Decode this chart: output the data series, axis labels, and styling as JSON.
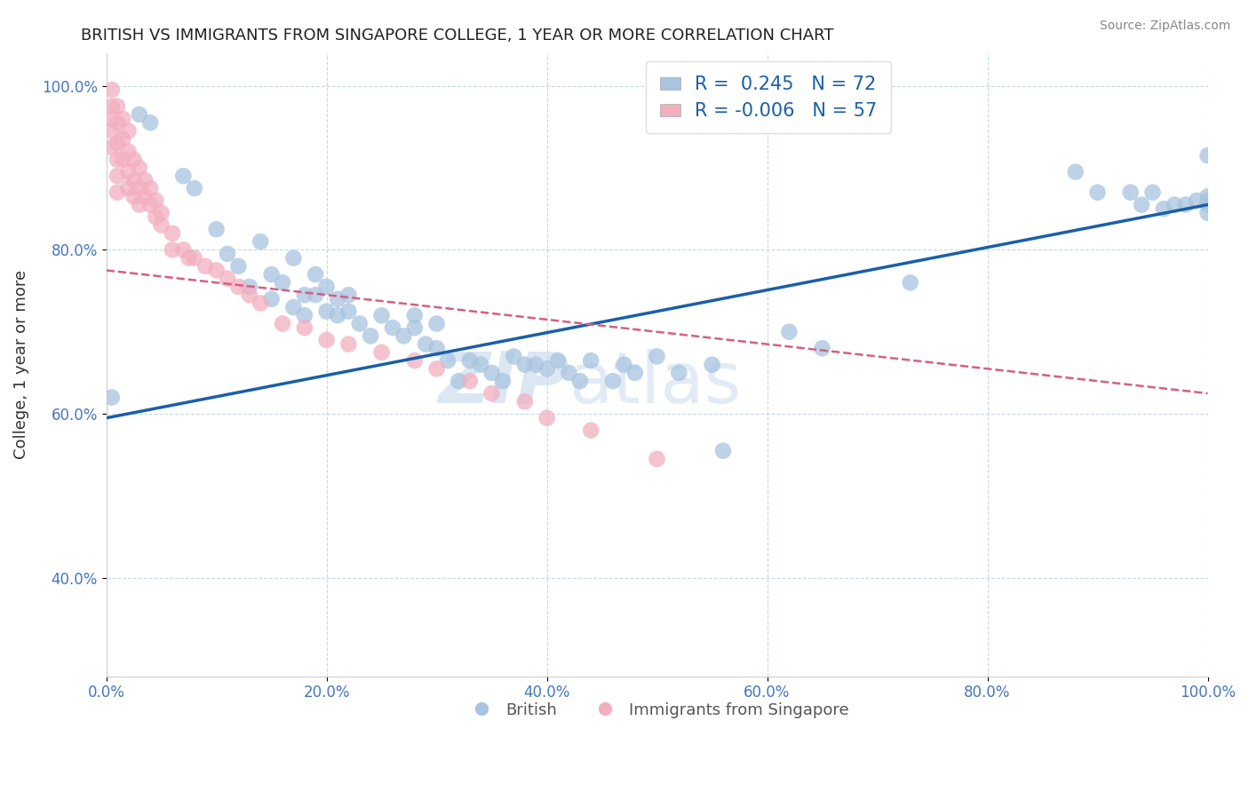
{
  "title": "BRITISH VS IMMIGRANTS FROM SINGAPORE COLLEGE, 1 YEAR OR MORE CORRELATION CHART",
  "source": "Source: ZipAtlas.com",
  "xlabel": "",
  "ylabel": "College, 1 year or more",
  "xlim": [
    0.0,
    1.0
  ],
  "ylim": [
    0.28,
    1.04
  ],
  "x_tick_labels": [
    "0.0%",
    "20.0%",
    "40.0%",
    "60.0%",
    "80.0%",
    "100.0%"
  ],
  "y_tick_labels": [
    "40.0%",
    "60.0%",
    "80.0%",
    "100.0%"
  ],
  "blue_R": 0.245,
  "blue_N": 72,
  "pink_R": -0.006,
  "pink_N": 57,
  "blue_color": "#a8c4e0",
  "pink_color": "#f2afc0",
  "blue_line_color": "#1a5fa8",
  "pink_line_color": "#d46080",
  "watermark_zip": "ZIP",
  "watermark_atlas": "atlas",
  "blue_points_x": [
    0.005,
    0.03,
    0.04,
    0.07,
    0.08,
    0.1,
    0.11,
    0.12,
    0.13,
    0.14,
    0.15,
    0.15,
    0.16,
    0.17,
    0.17,
    0.18,
    0.18,
    0.19,
    0.19,
    0.2,
    0.2,
    0.21,
    0.21,
    0.22,
    0.22,
    0.23,
    0.24,
    0.25,
    0.26,
    0.27,
    0.28,
    0.28,
    0.29,
    0.3,
    0.3,
    0.31,
    0.32,
    0.33,
    0.34,
    0.35,
    0.36,
    0.37,
    0.38,
    0.39,
    0.4,
    0.41,
    0.42,
    0.43,
    0.44,
    0.46,
    0.47,
    0.48,
    0.5,
    0.52,
    0.55,
    0.56,
    0.62,
    0.65,
    0.73,
    0.88,
    0.9,
    0.93,
    0.94,
    0.95,
    0.96,
    0.97,
    0.98,
    0.99,
    1.0,
    1.0,
    1.0,
    1.0,
    1.0
  ],
  "blue_points_y": [
    0.62,
    0.965,
    0.955,
    0.89,
    0.875,
    0.825,
    0.795,
    0.78,
    0.755,
    0.81,
    0.77,
    0.74,
    0.76,
    0.79,
    0.73,
    0.745,
    0.72,
    0.77,
    0.745,
    0.725,
    0.755,
    0.74,
    0.72,
    0.745,
    0.725,
    0.71,
    0.695,
    0.72,
    0.705,
    0.695,
    0.72,
    0.705,
    0.685,
    0.68,
    0.71,
    0.665,
    0.64,
    0.665,
    0.66,
    0.65,
    0.64,
    0.67,
    0.66,
    0.66,
    0.655,
    0.665,
    0.65,
    0.64,
    0.665,
    0.64,
    0.66,
    0.65,
    0.67,
    0.65,
    0.66,
    0.555,
    0.7,
    0.68,
    0.76,
    0.895,
    0.87,
    0.87,
    0.855,
    0.87,
    0.85,
    0.855,
    0.855,
    0.86,
    0.845,
    0.855,
    0.86,
    0.865,
    0.915
  ],
  "pink_points_x": [
    0.005,
    0.005,
    0.005,
    0.005,
    0.005,
    0.01,
    0.01,
    0.01,
    0.01,
    0.01,
    0.01,
    0.015,
    0.015,
    0.015,
    0.02,
    0.02,
    0.02,
    0.02,
    0.025,
    0.025,
    0.025,
    0.03,
    0.03,
    0.03,
    0.035,
    0.035,
    0.04,
    0.04,
    0.045,
    0.045,
    0.05,
    0.05,
    0.06,
    0.06,
    0.07,
    0.075,
    0.08,
    0.09,
    0.1,
    0.11,
    0.12,
    0.13,
    0.14,
    0.16,
    0.18,
    0.2,
    0.22,
    0.25,
    0.28,
    0.3,
    0.33,
    0.35,
    0.38,
    0.4,
    0.44,
    0.5
  ],
  "pink_points_y": [
    0.995,
    0.975,
    0.96,
    0.945,
    0.925,
    0.975,
    0.955,
    0.93,
    0.91,
    0.89,
    0.87,
    0.96,
    0.935,
    0.91,
    0.945,
    0.92,
    0.895,
    0.875,
    0.91,
    0.885,
    0.865,
    0.9,
    0.875,
    0.855,
    0.885,
    0.865,
    0.875,
    0.855,
    0.86,
    0.84,
    0.845,
    0.83,
    0.82,
    0.8,
    0.8,
    0.79,
    0.79,
    0.78,
    0.775,
    0.765,
    0.755,
    0.745,
    0.735,
    0.71,
    0.705,
    0.69,
    0.685,
    0.675,
    0.665,
    0.655,
    0.64,
    0.625,
    0.615,
    0.595,
    0.58,
    0.545
  ],
  "blue_line_y_start": 0.595,
  "blue_line_y_end": 0.855,
  "pink_line_y_start": 0.775,
  "pink_line_y_end": 0.625
}
